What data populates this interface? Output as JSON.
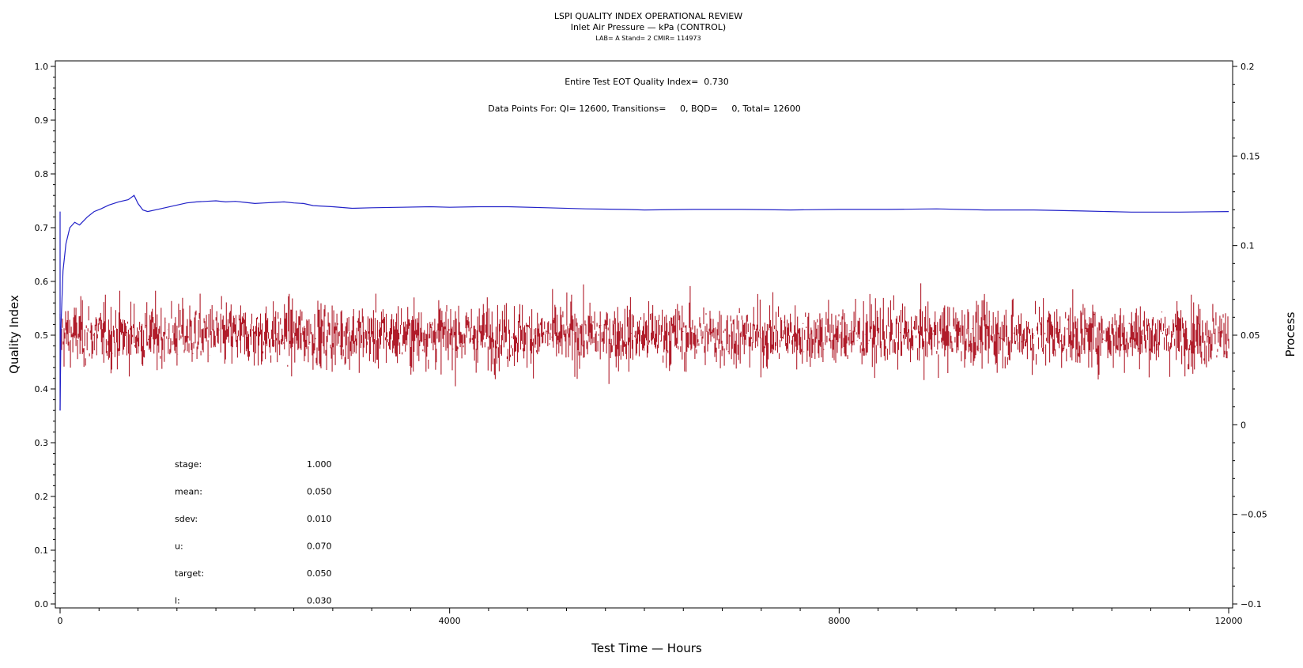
{
  "chart_data": {
    "type": "line",
    "title": "LSPI QUALITY INDEX OPERATIONAL REVIEW",
    "subtitle": "Inlet Air Pressure — kPa (CONTROL)",
    "subsubtitle": "LAB= A Stand= 2 CMIR= 114973",
    "annotations": {
      "qi_summary": "Entire Test EOT Quality Index=  0.730",
      "data_points": "Data Points For: QI= 12600, Transitions=     0, BQD=     0, Total= 12600"
    },
    "xlabel": "Test Time — Hours",
    "ylabel_left": "Quality Index",
    "ylabel_right": "Process",
    "xlim": [
      0,
      12000
    ],
    "ylim_left": [
      0.0,
      1.0
    ],
    "ylim_right": [
      -0.1,
      0.2
    ],
    "x_ticks": [
      "0",
      "4000",
      "8000",
      "12000"
    ],
    "y_left_ticks": [
      "0.0",
      "0.1",
      "0.2",
      "0.3",
      "0.4",
      "0.5",
      "0.6",
      "0.7",
      "0.8",
      "0.9",
      "1.0"
    ],
    "y_right_ticks": [
      "−0.1",
      "−0.05",
      "0",
      "0.05",
      "0.1",
      "0.15",
      "0.2"
    ],
    "grid": false,
    "series": [
      {
        "axis": "left",
        "color": "#2222c8",
        "x": [
          0,
          10,
          30,
          60,
          100,
          150,
          200,
          280,
          350,
          420,
          500,
          600,
          700,
          760,
          800,
          850,
          900,
          1000,
          1100,
          1200,
          1300,
          1400,
          1500,
          1600,
          1700,
          1800,
          1900,
          2000,
          2100,
          2200,
          2300,
          2400,
          2500,
          2600,
          2800,
          3000,
          3200,
          3500,
          3800,
          4000,
          4300,
          4600,
          5000,
          5400,
          5800,
          6000,
          6500,
          7000,
          7500,
          8000,
          8500,
          9000,
          9500,
          10000,
          10500,
          11000,
          11500,
          12000
        ],
        "values": [
          0.36,
          0.52,
          0.62,
          0.67,
          0.7,
          0.71,
          0.705,
          0.72,
          0.73,
          0.735,
          0.742,
          0.748,
          0.752,
          0.76,
          0.745,
          0.733,
          0.73,
          0.734,
          0.738,
          0.742,
          0.746,
          0.748,
          0.749,
          0.75,
          0.748,
          0.749,
          0.747,
          0.745,
          0.746,
          0.747,
          0.748,
          0.746,
          0.745,
          0.741,
          0.739,
          0.736,
          0.737,
          0.738,
          0.739,
          0.738,
          0.739,
          0.739,
          0.737,
          0.735,
          0.734,
          0.733,
          0.734,
          0.734,
          0.733,
          0.734,
          0.734,
          0.735,
          0.733,
          0.733,
          0.731,
          0.729,
          0.729,
          0.73
        ]
      },
      {
        "axis": "right",
        "color": "#b01c2a",
        "n": 12600,
        "stats": {
          "stage": 1.0,
          "mean": 0.05,
          "sdev": 0.01,
          "u": 0.07,
          "target": 0.05,
          "l": 0.03
        }
      }
    ],
    "stats_table": [
      {
        "label": "stage:",
        "value": "1.000"
      },
      {
        "label": "mean:",
        "value": "0.050"
      },
      {
        "label": "sdev:",
        "value": "0.010"
      },
      {
        "label": "u:",
        "value": "0.070"
      },
      {
        "label": "target:",
        "value": "0.050"
      },
      {
        "label": "l:",
        "value": "0.030"
      }
    ]
  }
}
